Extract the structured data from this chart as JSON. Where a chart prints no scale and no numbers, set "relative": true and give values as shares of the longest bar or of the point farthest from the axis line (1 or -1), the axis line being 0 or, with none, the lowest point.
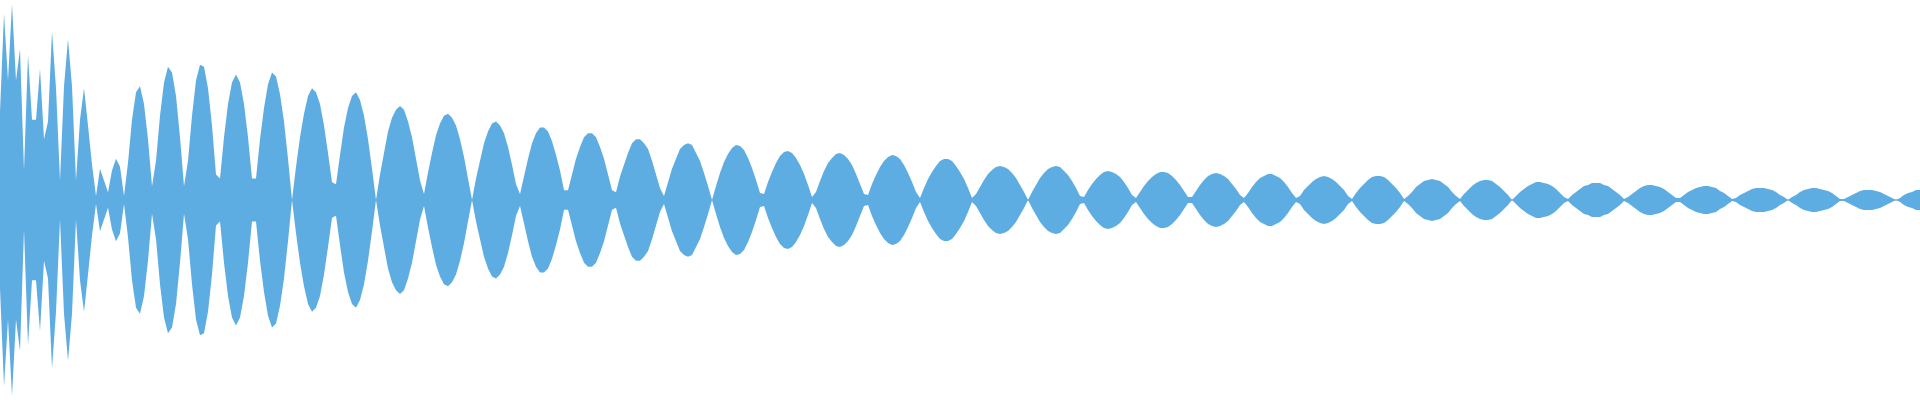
{
  "chart_data": {
    "type": "area",
    "relative": true,
    "categories": [
      null,
      null,
      null,
      null,
      null,
      null,
      null,
      null,
      null,
      null,
      null,
      null,
      null,
      null,
      null,
      null,
      null,
      null,
      null,
      null,
      null,
      null,
      null,
      null,
      null,
      null,
      null,
      null,
      null,
      null,
      null,
      null,
      null,
      null,
      null,
      null,
      null,
      null,
      null,
      null,
      null,
      null,
      null,
      null,
      null,
      null,
      null,
      null,
      null,
      null,
      null,
      null,
      null,
      null,
      null,
      null,
      null,
      null,
      null,
      null,
      null,
      null,
      null,
      null,
      null,
      null,
      null,
      null,
      null,
      null,
      null,
      null,
      null,
      null,
      null,
      null,
      null,
      null,
      null,
      null,
      null,
      null,
      null,
      null,
      null,
      null,
      null,
      null,
      null,
      null,
      null,
      null,
      null,
      null,
      null,
      null,
      null,
      null,
      null,
      null,
      null,
      null,
      null,
      null,
      null,
      null,
      null,
      null,
      null,
      null,
      null,
      null,
      null,
      null,
      null,
      null,
      null,
      null,
      null,
      null,
      null,
      null,
      null,
      null,
      null,
      null,
      null,
      null,
      null,
      null,
      null,
      null,
      null,
      null,
      null,
      null,
      null,
      null,
      null,
      null,
      null,
      null,
      null,
      null,
      null,
      null,
      null,
      null,
      null,
      null,
      null,
      null,
      null,
      null,
      null,
      null,
      null,
      null,
      null,
      null,
      null,
      null,
      null,
      null,
      null,
      null,
      null,
      null,
      null,
      null,
      null,
      null,
      null,
      null,
      null,
      null,
      null,
      null,
      null,
      null,
      null,
      null,
      null,
      null,
      null,
      null,
      null,
      null,
      null,
      null,
      null,
      null,
      null,
      null,
      null,
      null,
      null,
      null,
      null,
      null,
      null,
      null,
      null,
      null,
      null,
      null,
      null,
      null,
      null,
      null,
      null,
      null,
      null,
      null,
      null,
      null,
      null,
      null,
      null,
      null,
      null,
      null,
      null,
      null,
      null,
      null,
      null,
      null,
      null,
      null,
      null,
      null,
      null,
      null,
      null,
      null,
      null,
      null,
      null,
      null,
      null,
      null,
      null,
      null,
      null,
      null,
      null,
      null,
      null,
      null,
      null,
      null,
      null,
      null,
      null,
      null,
      null,
      null,
      null,
      null,
      null,
      null,
      null,
      null,
      null,
      null,
      null,
      null,
      null,
      null,
      null,
      null,
      null,
      null,
      null,
      null,
      null,
      null,
      null,
      null,
      null,
      null,
      null,
      null,
      null,
      null,
      null,
      null,
      null,
      null,
      null,
      null,
      null,
      null,
      null,
      null,
      null,
      null,
      null,
      null,
      null,
      null,
      null,
      null,
      null,
      null,
      null,
      null,
      null,
      null,
      null,
      null,
      null,
      null,
      null,
      null,
      null,
      null,
      null,
      null,
      null,
      null,
      null,
      null,
      null,
      null,
      null,
      null,
      null,
      null,
      null,
      null,
      null,
      null,
      null,
      null,
      null,
      null,
      null,
      null,
      null,
      null,
      null,
      null,
      null,
      null,
      null,
      null,
      null,
      null,
      null,
      null,
      null,
      null,
      null,
      null,
      null,
      null,
      null,
      null,
      null,
      null,
      null,
      null,
      null,
      null,
      null,
      null,
      null,
      null,
      null,
      null,
      null,
      null,
      null,
      null,
      null,
      null,
      null,
      null,
      null,
      null,
      null,
      null,
      null,
      null,
      null,
      null,
      null,
      null,
      null,
      null,
      null,
      null,
      null,
      null,
      null,
      null,
      null,
      null,
      null,
      null,
      null,
      null,
      null,
      null,
      null,
      null,
      null,
      null,
      null,
      null,
      null,
      null,
      null,
      null,
      null,
      null,
      null,
      null,
      null,
      null,
      null,
      null,
      null,
      null,
      null,
      null,
      null,
      null,
      null,
      null,
      null,
      null,
      null,
      null,
      null,
      null,
      null,
      null,
      null,
      null,
      null,
      null,
      null,
      null,
      null,
      null,
      null,
      null,
      null,
      null,
      null,
      null,
      null,
      null,
      null,
      null,
      null,
      null,
      null,
      null,
      null,
      null,
      null,
      null,
      null,
      null,
      null,
      null,
      null,
      null,
      null,
      null,
      null,
      null,
      null,
      null,
      null,
      null,
      null
    ],
    "series": [
      {
        "color": "#5dade2",
        "values": [
          0.45,
          0.95,
          0.61,
          1,
          0.61,
          0.77,
          0.15,
          0.74,
          0.41,
          0.41,
          0.67,
          0.31,
          0.4,
          0.86,
          0.57,
          0.1,
          0.58,
          0.82,
          0.58,
          0.1,
          0.41,
          0.57,
          0.38,
          0.18,
          0.02,
          0.16,
          0.1,
          0.04,
          0.15,
          0.21,
          0.17,
          0.02,
          0.19,
          0.41,
          0.55,
          0.58,
          0.49,
          0.31,
          0.07,
          0.2,
          0.43,
          0.6,
          0.68,
          0.65,
          0.53,
          0.32,
          0.07,
          0.2,
          0.43,
          0.61,
          0.69,
          0.68,
          0.57,
          0.38,
          0.13,
          0.11,
          0.32,
          0.49,
          0.6,
          0.64,
          0.6,
          0.49,
          0.32,
          0.11,
          0.11,
          0.31,
          0.47,
          0.59,
          0.65,
          0.63,
          0.54,
          0.4,
          0.21,
          0,
          0.17,
          0.32,
          0.44,
          0.53,
          0.57,
          0.55,
          0.49,
          0.38,
          0.24,
          0.09,
          0.08,
          0.23,
          0.37,
          0.47,
          0.53,
          0.55,
          0.51,
          0.43,
          0.31,
          0.16,
          0,
          0.13,
          0.24,
          0.35,
          0.42,
          0.46,
          0.48,
          0.46,
          0.4,
          0.32,
          0.21,
          0.1,
          0.03,
          0.14,
          0.24,
          0.33,
          0.39,
          0.43,
          0.44,
          0.42,
          0.38,
          0.31,
          0.22,
          0.11,
          0,
          0.11,
          0.2,
          0.29,
          0.35,
          0.39,
          0.4,
          0.38,
          0.34,
          0.27,
          0.18,
          0.08,
          0.03,
          0.12,
          0.21,
          0.29,
          0.34,
          0.37,
          0.37,
          0.35,
          0.3,
          0.23,
          0.15,
          0.05,
          0.05,
          0.13,
          0.21,
          0.27,
          0.32,
          0.34,
          0.34,
          0.32,
          0.27,
          0.21,
          0.13,
          0.05,
          0.04,
          0.12,
          0.18,
          0.24,
          0.29,
          0.31,
          0.31,
          0.29,
          0.26,
          0.2,
          0.13,
          0.06,
          0.02,
          0.09,
          0.16,
          0.21,
          0.26,
          0.28,
          0.29,
          0.28,
          0.24,
          0.199,
          0.138,
          0.071,
          0,
          0.071,
          0.138,
          0.194,
          0.235,
          0.265,
          0.281,
          0.276,
          0.255,
          0.214,
          0.163,
          0.102,
          0.036,
          0.031,
          0.092,
          0.143,
          0.189,
          0.224,
          0.245,
          0.25,
          0.24,
          0.214,
          0.179,
          0.133,
          0.077,
          0.015,
          0.041,
          0.097,
          0.148,
          0.189,
          0.214,
          0.235,
          0.24,
          0.23,
          0.209,
          0.179,
          0.133,
          0.082,
          0.031,
          0.026,
          0.082,
          0.128,
          0.168,
          0.199,
          0.219,
          0.23,
          0.224,
          0.209,
          0.179,
          0.138,
          0.092,
          0.041,
          0.01,
          0.061,
          0.107,
          0.143,
          0.173,
          0.199,
          0.209,
          0.209,
          0.199,
          0.173,
          0.143,
          0.107,
          0.061,
          0.01,
          0.031,
          0.066,
          0.102,
          0.133,
          0.153,
          0.168,
          0.173,
          0.168,
          0.158,
          0.138,
          0.112,
          0.077,
          0.041,
          0,
          0.041,
          0.077,
          0.112,
          0.138,
          0.158,
          0.168,
          0.173,
          0.168,
          0.148,
          0.128,
          0.097,
          0.061,
          0.02,
          0.015,
          0.051,
          0.082,
          0.107,
          0.128,
          0.143,
          0.148,
          0.143,
          0.133,
          0.117,
          0.092,
          0.061,
          0.026,
          0.01,
          0.041,
          0.071,
          0.097,
          0.117,
          0.133,
          0.143,
          0.143,
          0.138,
          0.122,
          0.102,
          0.077,
          0.046,
          0.015,
          0.015,
          0.046,
          0.077,
          0.102,
          0.122,
          0.133,
          0.138,
          0.133,
          0.122,
          0.107,
          0.082,
          0.056,
          0.026,
          0.01,
          0.036,
          0.066,
          0.092,
          0.112,
          0.122,
          0.133,
          0.133,
          0.122,
          0.112,
          0.092,
          0.066,
          0.036,
          0.01,
          0.02,
          0.051,
          0.071,
          0.092,
          0.107,
          0.117,
          0.122,
          0.117,
          0.107,
          0.092,
          0.071,
          0.051,
          0.02,
          0.005,
          0.036,
          0.061,
          0.082,
          0.102,
          0.117,
          0.122,
          0.122,
          0.117,
          0.102,
          0.082,
          0.061,
          0.036,
          0.005,
          0.02,
          0.041,
          0.066,
          0.082,
          0.097,
          0.102,
          0.107,
          0.102,
          0.097,
          0.082,
          0.066,
          0.041,
          0.02,
          0.005,
          0.031,
          0.051,
          0.071,
          0.087,
          0.097,
          0.102,
          0.102,
          0.097,
          0.082,
          0.066,
          0.046,
          0.026,
          0,
          0.02,
          0.041,
          0.056,
          0.071,
          0.082,
          0.092,
          0.092,
          0.087,
          0.082,
          0.071,
          0.056,
          0.036,
          0.015,
          0.005,
          0.026,
          0.041,
          0.056,
          0.071,
          0.077,
          0.087,
          0.087,
          0.087,
          0.077,
          0.071,
          0.056,
          0.041,
          0.026,
          0.005,
          0.015,
          0.031,
          0.046,
          0.061,
          0.071,
          0.077,
          0.077,
          0.071,
          0.066,
          0.056,
          0.041,
          0.026,
          0.01,
          0.01,
          0.026,
          0.041,
          0.051,
          0.061,
          0.066,
          0.071,
          0.071,
          0.066,
          0.061,
          0.046,
          0.036,
          0.02,
          0.005,
          0.01,
          0.026,
          0.036,
          0.046,
          0.056,
          0.061,
          0.061,
          0.061,
          0.056,
          0.051,
          0.041,
          0.026,
          0.015,
          0,
          0.015,
          0.026,
          0.041,
          0.051,
          0.056,
          0.061,
          0.061,
          0.056,
          0.051,
          0.046,
          0.036,
          0.02,
          0.005,
          0.005,
          0.015,
          0.026,
          0.036,
          0.046,
          0.051,
          0.051,
          0.051,
          0.046,
          0.041,
          0.031,
          0.02,
          0.01,
          0,
          0.01,
          0.026,
          0.036,
          0.041,
          0.051,
          0.051
        ]
      },
      {
        "color": "#5dade2",
        "values": [
          -0.45,
          -0.95,
          -0.61,
          -1,
          -0.61,
          -0.77,
          -0.15,
          -0.74,
          -0.41,
          -0.41,
          -0.67,
          -0.31,
          -0.4,
          -0.86,
          -0.57,
          -0.1,
          -0.58,
          -0.82,
          -0.58,
          -0.1,
          -0.41,
          -0.57,
          -0.38,
          -0.18,
          -0.02,
          -0.16,
          -0.1,
          -0.04,
          -0.15,
          -0.21,
          -0.17,
          -0.02,
          -0.19,
          -0.41,
          -0.55,
          -0.58,
          -0.49,
          -0.31,
          -0.07,
          -0.2,
          -0.43,
          -0.6,
          -0.68,
          -0.65,
          -0.53,
          -0.32,
          -0.07,
          -0.2,
          -0.43,
          -0.61,
          -0.69,
          -0.68,
          -0.57,
          -0.38,
          -0.13,
          -0.11,
          -0.32,
          -0.49,
          -0.6,
          -0.64,
          -0.6,
          -0.49,
          -0.32,
          -0.11,
          -0.11,
          -0.31,
          -0.47,
          -0.59,
          -0.65,
          -0.63,
          -0.54,
          -0.4,
          -0.21,
          0,
          -0.17,
          -0.32,
          -0.44,
          -0.53,
          -0.57,
          -0.55,
          -0.49,
          -0.38,
          -0.24,
          -0.09,
          -0.08,
          -0.23,
          -0.37,
          -0.47,
          -0.53,
          -0.55,
          -0.51,
          -0.43,
          -0.31,
          -0.16,
          0,
          -0.13,
          -0.24,
          -0.35,
          -0.42,
          -0.46,
          -0.48,
          -0.46,
          -0.4,
          -0.32,
          -0.21,
          -0.1,
          -0.03,
          -0.14,
          -0.24,
          -0.33,
          -0.39,
          -0.43,
          -0.44,
          -0.42,
          -0.38,
          -0.31,
          -0.22,
          -0.11,
          0,
          -0.11,
          -0.2,
          -0.29,
          -0.35,
          -0.39,
          -0.4,
          -0.38,
          -0.34,
          -0.27,
          -0.18,
          -0.08,
          -0.03,
          -0.12,
          -0.21,
          -0.29,
          -0.34,
          -0.37,
          -0.37,
          -0.35,
          -0.3,
          -0.23,
          -0.15,
          -0.05,
          -0.05,
          -0.13,
          -0.21,
          -0.27,
          -0.32,
          -0.34,
          -0.34,
          -0.32,
          -0.27,
          -0.21,
          -0.13,
          -0.05,
          -0.04,
          -0.12,
          -0.18,
          -0.24,
          -0.29,
          -0.31,
          -0.31,
          -0.29,
          -0.26,
          -0.2,
          -0.13,
          -0.06,
          -0.02,
          -0.09,
          -0.16,
          -0.21,
          -0.26,
          -0.28,
          -0.29,
          -0.28,
          -0.24,
          -0.199,
          -0.138,
          -0.071,
          0,
          -0.071,
          -0.138,
          -0.194,
          -0.235,
          -0.265,
          -0.281,
          -0.276,
          -0.255,
          -0.214,
          -0.163,
          -0.102,
          -0.036,
          -0.031,
          -0.092,
          -0.143,
          -0.189,
          -0.224,
          -0.245,
          -0.25,
          -0.24,
          -0.214,
          -0.179,
          -0.133,
          -0.077,
          -0.015,
          -0.041,
          -0.097,
          -0.148,
          -0.189,
          -0.214,
          -0.235,
          -0.24,
          -0.23,
          -0.209,
          -0.179,
          -0.133,
          -0.082,
          -0.031,
          -0.026,
          -0.082,
          -0.128,
          -0.168,
          -0.199,
          -0.219,
          -0.23,
          -0.224,
          -0.209,
          -0.179,
          -0.138,
          -0.092,
          -0.041,
          -0.01,
          -0.061,
          -0.107,
          -0.143,
          -0.173,
          -0.199,
          -0.209,
          -0.209,
          -0.199,
          -0.173,
          -0.143,
          -0.107,
          -0.061,
          -0.01,
          -0.031,
          -0.066,
          -0.102,
          -0.133,
          -0.153,
          -0.168,
          -0.173,
          -0.168,
          -0.158,
          -0.138,
          -0.112,
          -0.077,
          -0.041,
          0,
          -0.041,
          -0.077,
          -0.112,
          -0.138,
          -0.158,
          -0.168,
          -0.173,
          -0.168,
          -0.148,
          -0.128,
          -0.097,
          -0.061,
          -0.02,
          -0.015,
          -0.051,
          -0.082,
          -0.107,
          -0.128,
          -0.143,
          -0.148,
          -0.143,
          -0.133,
          -0.117,
          -0.092,
          -0.061,
          -0.026,
          -0.01,
          -0.041,
          -0.071,
          -0.097,
          -0.117,
          -0.133,
          -0.143,
          -0.143,
          -0.138,
          -0.122,
          -0.102,
          -0.077,
          -0.046,
          -0.015,
          -0.015,
          -0.046,
          -0.077,
          -0.102,
          -0.122,
          -0.133,
          -0.138,
          -0.133,
          -0.122,
          -0.107,
          -0.082,
          -0.056,
          -0.026,
          -0.01,
          -0.036,
          -0.066,
          -0.092,
          -0.112,
          -0.122,
          -0.133,
          -0.133,
          -0.122,
          -0.112,
          -0.092,
          -0.066,
          -0.036,
          -0.01,
          -0.02,
          -0.051,
          -0.071,
          -0.092,
          -0.107,
          -0.117,
          -0.122,
          -0.117,
          -0.107,
          -0.092,
          -0.071,
          -0.051,
          -0.02,
          -0.005,
          -0.036,
          -0.061,
          -0.082,
          -0.102,
          -0.117,
          -0.122,
          -0.122,
          -0.117,
          -0.102,
          -0.082,
          -0.061,
          -0.036,
          -0.005,
          -0.02,
          -0.041,
          -0.066,
          -0.082,
          -0.097,
          -0.102,
          -0.107,
          -0.102,
          -0.097,
          -0.082,
          -0.066,
          -0.041,
          -0.02,
          -0.005,
          -0.031,
          -0.051,
          -0.071,
          -0.087,
          -0.097,
          -0.102,
          -0.102,
          -0.097,
          -0.082,
          -0.066,
          -0.046,
          -0.026,
          0,
          -0.02,
          -0.041,
          -0.056,
          -0.071,
          -0.082,
          -0.092,
          -0.092,
          -0.087,
          -0.082,
          -0.071,
          -0.056,
          -0.036,
          -0.015,
          -0.005,
          -0.026,
          -0.041,
          -0.056,
          -0.071,
          -0.077,
          -0.087,
          -0.087,
          -0.087,
          -0.077,
          -0.071,
          -0.056,
          -0.041,
          -0.026,
          -0.005,
          -0.015,
          -0.031,
          -0.046,
          -0.061,
          -0.071,
          -0.077,
          -0.077,
          -0.071,
          -0.066,
          -0.056,
          -0.041,
          -0.026,
          -0.01,
          -0.01,
          -0.026,
          -0.041,
          -0.051,
          -0.061,
          -0.066,
          -0.071,
          -0.071,
          -0.066,
          -0.061,
          -0.046,
          -0.036,
          -0.02,
          -0.005,
          -0.01,
          -0.026,
          -0.036,
          -0.046,
          -0.056,
          -0.061,
          -0.061,
          -0.061,
          -0.056,
          -0.051,
          -0.041,
          -0.026,
          -0.015,
          0,
          -0.015,
          -0.026,
          -0.041,
          -0.051,
          -0.056,
          -0.061,
          -0.061,
          -0.056,
          -0.051,
          -0.046,
          -0.036,
          -0.02,
          -0.005,
          -0.005,
          -0.015,
          -0.026,
          -0.036,
          -0.046,
          -0.051,
          -0.051,
          -0.051,
          -0.046,
          -0.041,
          -0.031,
          -0.02,
          -0.01,
          0,
          -0.01,
          -0.026,
          -0.036,
          -0.041,
          -0.051,
          -0.051
        ]
      }
    ]
  }
}
